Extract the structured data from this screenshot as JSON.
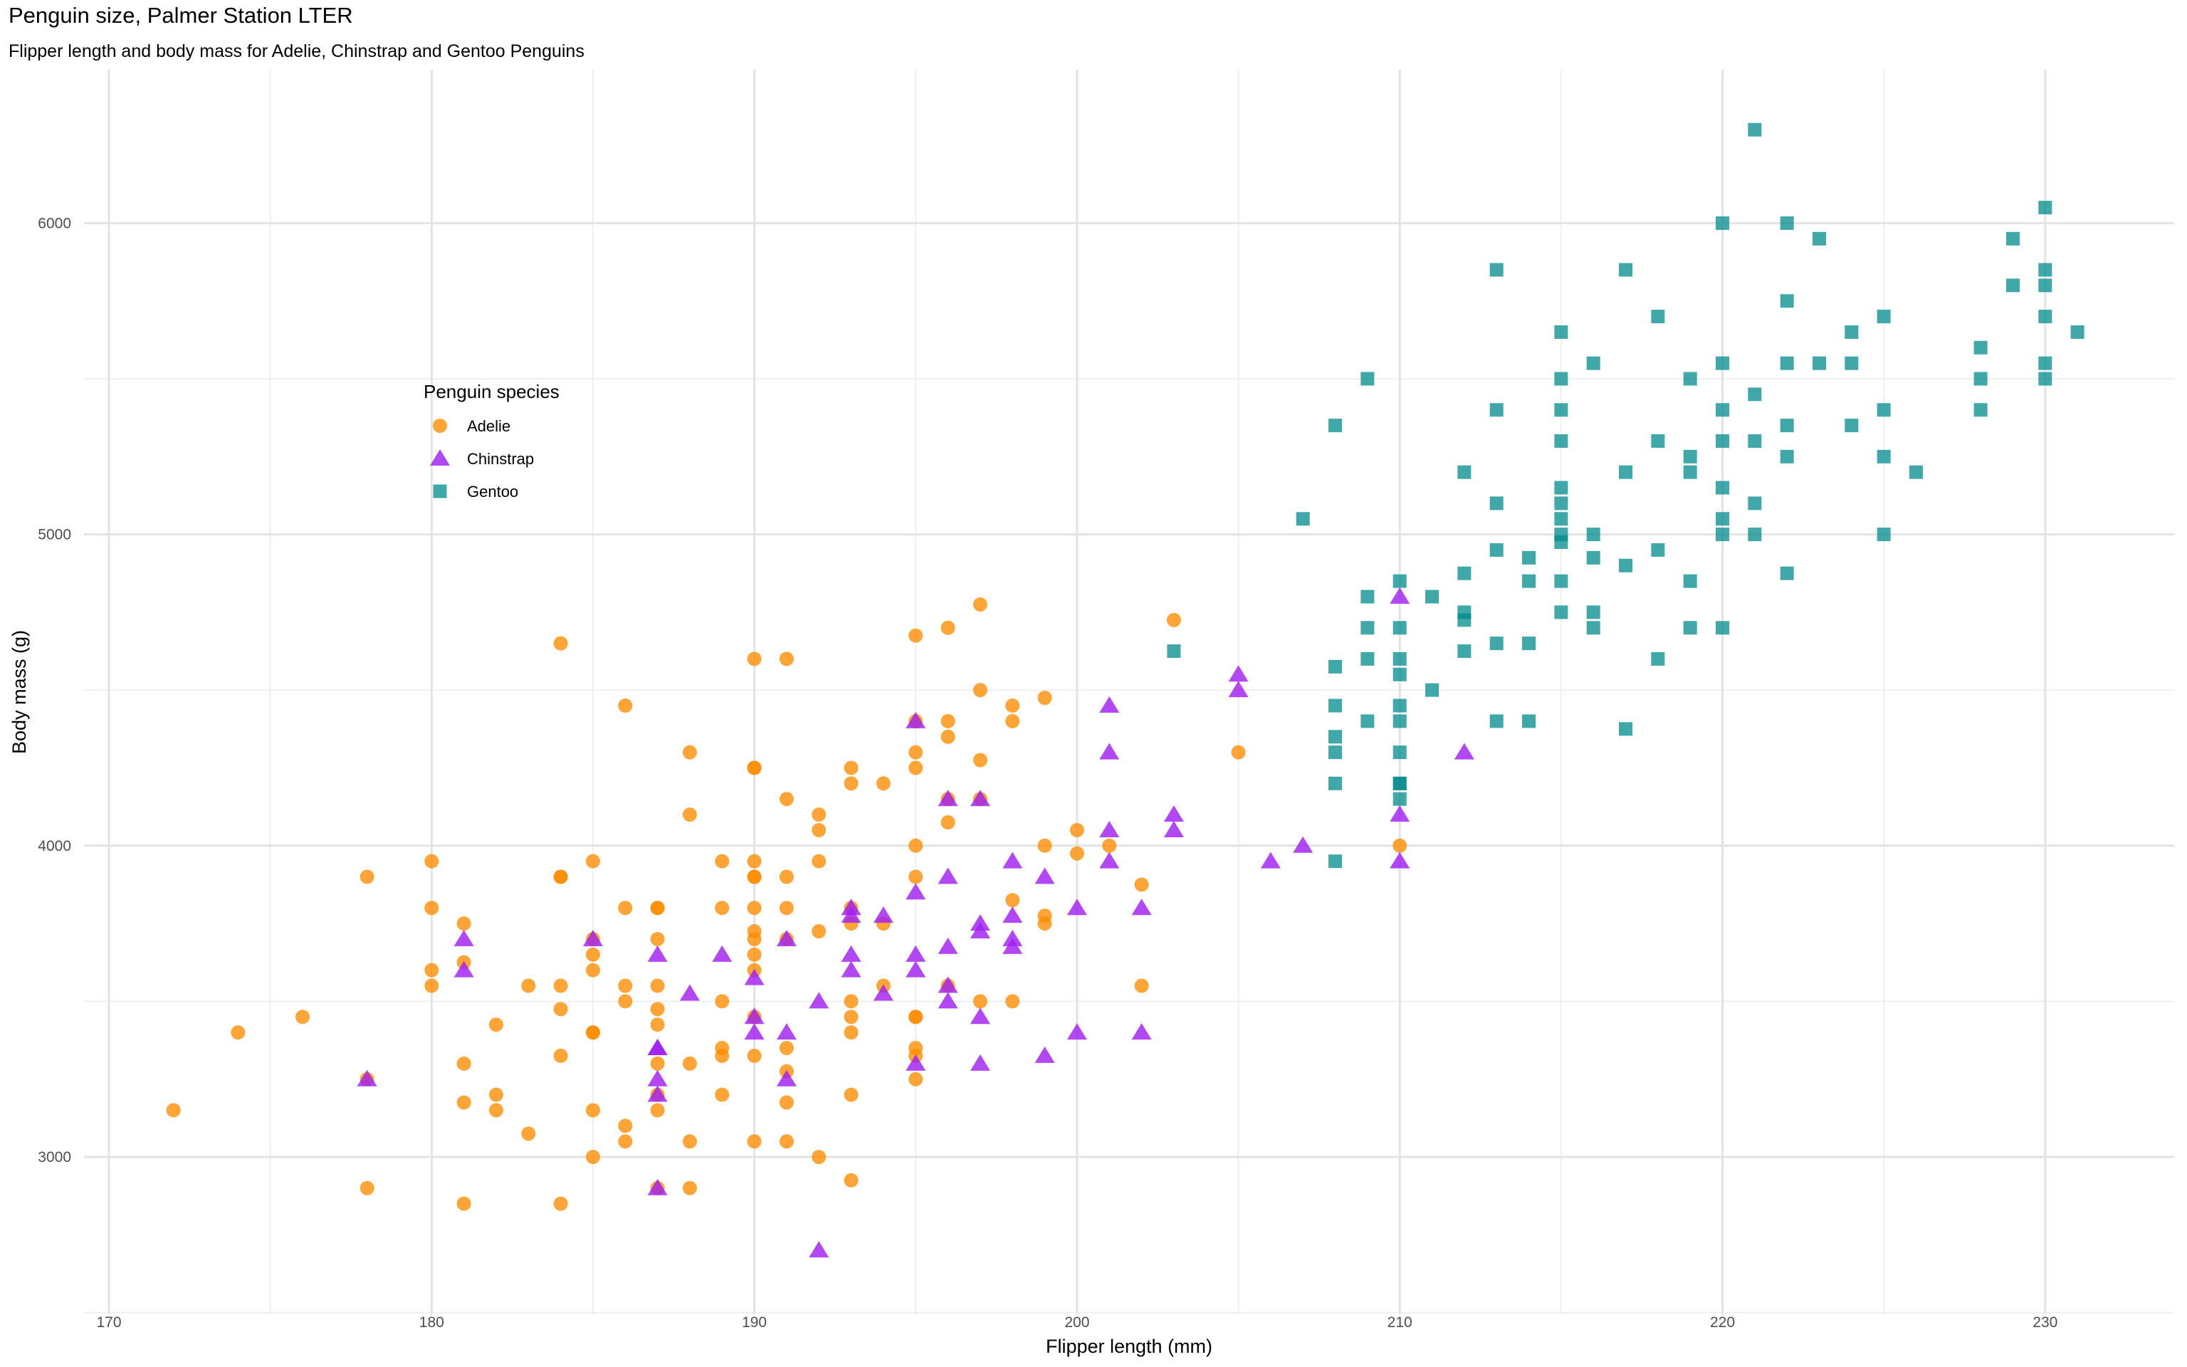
{
  "chart_data": {
    "type": "scatter",
    "title": "Penguin size, Palmer Station LTER",
    "subtitle": "Flipper length and body mass for Adelie, Chinstrap and Gentoo Penguins",
    "xlabel": "Flipper length (mm)",
    "ylabel": "Body mass (g)",
    "xlim": [
      168.7,
      233.2
    ],
    "ylim": [
      2500,
      6450
    ],
    "xticks": [
      170,
      180,
      190,
      200,
      210,
      220,
      230
    ],
    "yticks": [
      3000,
      4000,
      5000,
      6000
    ],
    "grid": true,
    "legend": {
      "title": "Penguin species",
      "placement": "left-inside"
    },
    "series": [
      {
        "name": "Adelie",
        "marker": "circle",
        "color": "#FF8C00",
        "points": [
          [
            172,
            3150
          ],
          [
            174,
            3400
          ],
          [
            176,
            3450
          ],
          [
            178,
            3900
          ],
          [
            178,
            3250
          ],
          [
            178,
            2900
          ],
          [
            180,
            3950
          ],
          [
            180,
            3800
          ],
          [
            180,
            3600
          ],
          [
            180,
            3550
          ],
          [
            181,
            3750
          ],
          [
            181,
            3625
          ],
          [
            181,
            3300
          ],
          [
            181,
            3175
          ],
          [
            181,
            2850
          ],
          [
            182,
            3425
          ],
          [
            182,
            3200
          ],
          [
            182,
            3150
          ],
          [
            183,
            3550
          ],
          [
            183,
            3075
          ],
          [
            184,
            4650
          ],
          [
            184,
            3900
          ],
          [
            184,
            3900
          ],
          [
            184,
            3550
          ],
          [
            184,
            3475
          ],
          [
            184,
            3325
          ],
          [
            184,
            2850
          ],
          [
            185,
            3950
          ],
          [
            185,
            3700
          ],
          [
            185,
            3650
          ],
          [
            185,
            3600
          ],
          [
            185,
            3400
          ],
          [
            185,
            3400
          ],
          [
            185,
            3150
          ],
          [
            185,
            3000
          ],
          [
            186,
            4450
          ],
          [
            186,
            3800
          ],
          [
            186,
            3550
          ],
          [
            186,
            3500
          ],
          [
            186,
            3100
          ],
          [
            186,
            3050
          ],
          [
            187,
            3800
          ],
          [
            187,
            3800
          ],
          [
            187,
            3700
          ],
          [
            187,
            3550
          ],
          [
            187,
            3475
          ],
          [
            187,
            3425
          ],
          [
            187,
            3300
          ],
          [
            187,
            3200
          ],
          [
            187,
            3150
          ],
          [
            187,
            2900
          ],
          [
            188,
            4300
          ],
          [
            188,
            4100
          ],
          [
            188,
            3300
          ],
          [
            188,
            3050
          ],
          [
            188,
            2900
          ],
          [
            189,
            3950
          ],
          [
            189,
            3800
          ],
          [
            189,
            3500
          ],
          [
            189,
            3350
          ],
          [
            189,
            3325
          ],
          [
            189,
            3200
          ],
          [
            190,
            4600
          ],
          [
            190,
            4250
          ],
          [
            190,
            4250
          ],
          [
            190,
            3950
          ],
          [
            190,
            3900
          ],
          [
            190,
            3900
          ],
          [
            190,
            3800
          ],
          [
            190,
            3725
          ],
          [
            190,
            3700
          ],
          [
            190,
            3650
          ],
          [
            190,
            3600
          ],
          [
            190,
            3450
          ],
          [
            190,
            3325
          ],
          [
            190,
            3050
          ],
          [
            191,
            4600
          ],
          [
            191,
            4150
          ],
          [
            191,
            3900
          ],
          [
            191,
            3800
          ],
          [
            191,
            3700
          ],
          [
            191,
            3350
          ],
          [
            191,
            3275
          ],
          [
            191,
            3175
          ],
          [
            191,
            3050
          ],
          [
            192,
            4100
          ],
          [
            192,
            4050
          ],
          [
            192,
            3950
          ],
          [
            192,
            3725
          ],
          [
            192,
            3000
          ],
          [
            193,
            4250
          ],
          [
            193,
            4200
          ],
          [
            193,
            3800
          ],
          [
            193,
            3750
          ],
          [
            193,
            3500
          ],
          [
            193,
            3450
          ],
          [
            193,
            3400
          ],
          [
            193,
            3200
          ],
          [
            193,
            2925
          ],
          [
            194,
            4200
          ],
          [
            194,
            3750
          ],
          [
            194,
            3550
          ],
          [
            195,
            4675
          ],
          [
            195,
            4400
          ],
          [
            195,
            4300
          ],
          [
            195,
            4250
          ],
          [
            195,
            4000
          ],
          [
            195,
            3900
          ],
          [
            195,
            3450
          ],
          [
            195,
            3450
          ],
          [
            195,
            3350
          ],
          [
            195,
            3325
          ],
          [
            195,
            3250
          ],
          [
            196,
            4700
          ],
          [
            196,
            4400
          ],
          [
            196,
            4350
          ],
          [
            196,
            4150
          ],
          [
            196,
            4075
          ],
          [
            196,
            3550
          ],
          [
            197,
            4775
          ],
          [
            197,
            4500
          ],
          [
            197,
            4275
          ],
          [
            197,
            4150
          ],
          [
            197,
            3500
          ],
          [
            198,
            4450
          ],
          [
            198,
            4400
          ],
          [
            198,
            3825
          ],
          [
            198,
            3500
          ],
          [
            199,
            4475
          ],
          [
            199,
            4000
          ],
          [
            199,
            3775
          ],
          [
            199,
            3750
          ],
          [
            200,
            4050
          ],
          [
            200,
            3975
          ],
          [
            201,
            4000
          ],
          [
            202,
            3875
          ],
          [
            202,
            3550
          ],
          [
            203,
            4725
          ],
          [
            205,
            4300
          ],
          [
            210,
            4000
          ]
        ]
      },
      {
        "name": "Chinstrap",
        "marker": "triangle",
        "color": "#A020F0",
        "points": [
          [
            178,
            3250
          ],
          [
            181,
            3700
          ],
          [
            181,
            3600
          ],
          [
            185,
            3700
          ],
          [
            187,
            3650
          ],
          [
            187,
            3350
          ],
          [
            187,
            3350
          ],
          [
            187,
            3250
          ],
          [
            187,
            3200
          ],
          [
            187,
            2900
          ],
          [
            188,
            3525
          ],
          [
            189,
            3650
          ],
          [
            190,
            3575
          ],
          [
            190,
            3450
          ],
          [
            190,
            3400
          ],
          [
            191,
            3700
          ],
          [
            191,
            3400
          ],
          [
            191,
            3250
          ],
          [
            192,
            3500
          ],
          [
            192,
            2700
          ],
          [
            193,
            3800
          ],
          [
            193,
            3775
          ],
          [
            193,
            3650
          ],
          [
            193,
            3600
          ],
          [
            194,
            3775
          ],
          [
            194,
            3525
          ],
          [
            195,
            4400
          ],
          [
            195,
            3850
          ],
          [
            195,
            3650
          ],
          [
            195,
            3600
          ],
          [
            195,
            3300
          ],
          [
            196,
            4150
          ],
          [
            196,
            3900
          ],
          [
            196,
            3675
          ],
          [
            196,
            3550
          ],
          [
            196,
            3500
          ],
          [
            197,
            4150
          ],
          [
            197,
            3750
          ],
          [
            197,
            3725
          ],
          [
            197,
            3450
          ],
          [
            197,
            3300
          ],
          [
            198,
            3950
          ],
          [
            198,
            3775
          ],
          [
            198,
            3700
          ],
          [
            198,
            3675
          ],
          [
            199,
            3900
          ],
          [
            199,
            3325
          ],
          [
            200,
            3800
          ],
          [
            200,
            3400
          ],
          [
            201,
            4450
          ],
          [
            201,
            4300
          ],
          [
            201,
            4050
          ],
          [
            201,
            3950
          ],
          [
            202,
            3800
          ],
          [
            202,
            3400
          ],
          [
            203,
            4100
          ],
          [
            203,
            4050
          ],
          [
            205,
            4550
          ],
          [
            205,
            4500
          ],
          [
            206,
            3950
          ],
          [
            207,
            4000
          ],
          [
            210,
            4800
          ],
          [
            210,
            4100
          ],
          [
            210,
            3950
          ],
          [
            212,
            4300
          ]
        ]
      },
      {
        "name": "Gentoo",
        "marker": "square",
        "color": "#008B8B",
        "points": [
          [
            203,
            4625
          ],
          [
            207,
            5050
          ],
          [
            208,
            5350
          ],
          [
            208,
            4575
          ],
          [
            208,
            4450
          ],
          [
            208,
            4350
          ],
          [
            208,
            4300
          ],
          [
            208,
            4200
          ],
          [
            208,
            3950
          ],
          [
            209,
            5500
          ],
          [
            209,
            4800
          ],
          [
            209,
            4700
          ],
          [
            209,
            4600
          ],
          [
            209,
            4400
          ],
          [
            210,
            4850
          ],
          [
            210,
            4700
          ],
          [
            210,
            4600
          ],
          [
            210,
            4550
          ],
          [
            210,
            4450
          ],
          [
            210,
            4400
          ],
          [
            210,
            4300
          ],
          [
            210,
            4200
          ],
          [
            210,
            4200
          ],
          [
            210,
            4150
          ],
          [
            211,
            4800
          ],
          [
            211,
            4500
          ],
          [
            212,
            5200
          ],
          [
            212,
            4875
          ],
          [
            212,
            4750
          ],
          [
            212,
            4725
          ],
          [
            212,
            4625
          ],
          [
            213,
            5850
          ],
          [
            213,
            5400
          ],
          [
            213,
            5100
          ],
          [
            213,
            4950
          ],
          [
            213,
            4650
          ],
          [
            213,
            4400
          ],
          [
            214,
            4925
          ],
          [
            214,
            4850
          ],
          [
            214,
            4650
          ],
          [
            214,
            4400
          ],
          [
            215,
            5650
          ],
          [
            215,
            5500
          ],
          [
            215,
            5400
          ],
          [
            215,
            5300
          ],
          [
            215,
            5150
          ],
          [
            215,
            5100
          ],
          [
            215,
            5050
          ],
          [
            215,
            5000
          ],
          [
            215,
            4975
          ],
          [
            215,
            4850
          ],
          [
            215,
            4750
          ],
          [
            216,
            5550
          ],
          [
            216,
            5000
          ],
          [
            216,
            4925
          ],
          [
            216,
            4750
          ],
          [
            216,
            4700
          ],
          [
            217,
            5850
          ],
          [
            217,
            5200
          ],
          [
            217,
            4900
          ],
          [
            217,
            4375
          ],
          [
            218,
            5700
          ],
          [
            218,
            5300
          ],
          [
            218,
            4950
          ],
          [
            218,
            4600
          ],
          [
            219,
            5500
          ],
          [
            219,
            5250
          ],
          [
            219,
            5200
          ],
          [
            219,
            4850
          ],
          [
            219,
            4700
          ],
          [
            220,
            6000
          ],
          [
            220,
            5550
          ],
          [
            220,
            5400
          ],
          [
            220,
            5300
          ],
          [
            220,
            5150
          ],
          [
            220,
            5050
          ],
          [
            220,
            5000
          ],
          [
            220,
            4700
          ],
          [
            221,
            6300
          ],
          [
            221,
            5450
          ],
          [
            221,
            5300
          ],
          [
            221,
            5100
          ],
          [
            221,
            5000
          ],
          [
            222,
            6000
          ],
          [
            222,
            5750
          ],
          [
            222,
            5550
          ],
          [
            222,
            5350
          ],
          [
            222,
            5250
          ],
          [
            222,
            4875
          ],
          [
            223,
            5950
          ],
          [
            223,
            5550
          ],
          [
            224,
            5650
          ],
          [
            224,
            5550
          ],
          [
            224,
            5350
          ],
          [
            225,
            5700
          ],
          [
            225,
            5400
          ],
          [
            225,
            5250
          ],
          [
            225,
            5000
          ],
          [
            226,
            5200
          ],
          [
            228,
            5600
          ],
          [
            228,
            5500
          ],
          [
            228,
            5400
          ],
          [
            229,
            5950
          ],
          [
            229,
            5800
          ],
          [
            230,
            6050
          ],
          [
            230,
            5850
          ],
          [
            230,
            5800
          ],
          [
            230,
            5700
          ],
          [
            230,
            5550
          ],
          [
            230,
            5500
          ],
          [
            231,
            5650
          ]
        ]
      }
    ]
  }
}
